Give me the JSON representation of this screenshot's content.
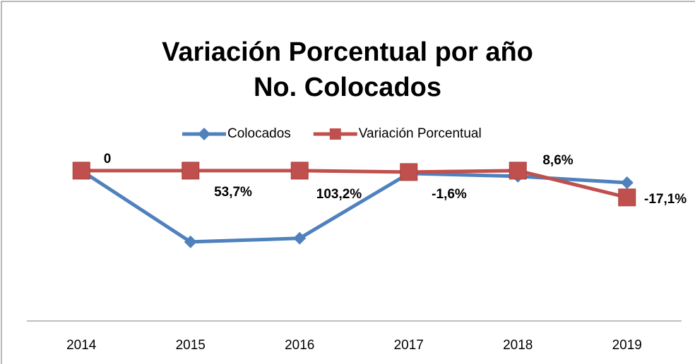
{
  "chart_data": {
    "type": "line",
    "title": [
      "Variación Porcentual por año",
      "No. Colocados"
    ],
    "categories": [
      "2014",
      "2015",
      "2016",
      "2017",
      "2018",
      "2019"
    ],
    "series": [
      {
        "name": "Colocados",
        "color": "#4f81bd",
        "marker": "diamond",
        "values": [
          0,
          -45.5,
          -43.2,
          -1.8,
          -3.6,
          -7.7
        ]
      },
      {
        "name": "Variación Porcentual",
        "color": "#c0504d",
        "marker": "square",
        "values": [
          0,
          0,
          0,
          -0.9,
          0,
          -17.1
        ]
      }
    ],
    "annotations": [
      "0",
      "53,7%",
      "103,2%",
      "-1,6%",
      "8,6%",
      "-17,1%"
    ],
    "ylim": [
      -96,
      20
    ],
    "legend": "top"
  }
}
